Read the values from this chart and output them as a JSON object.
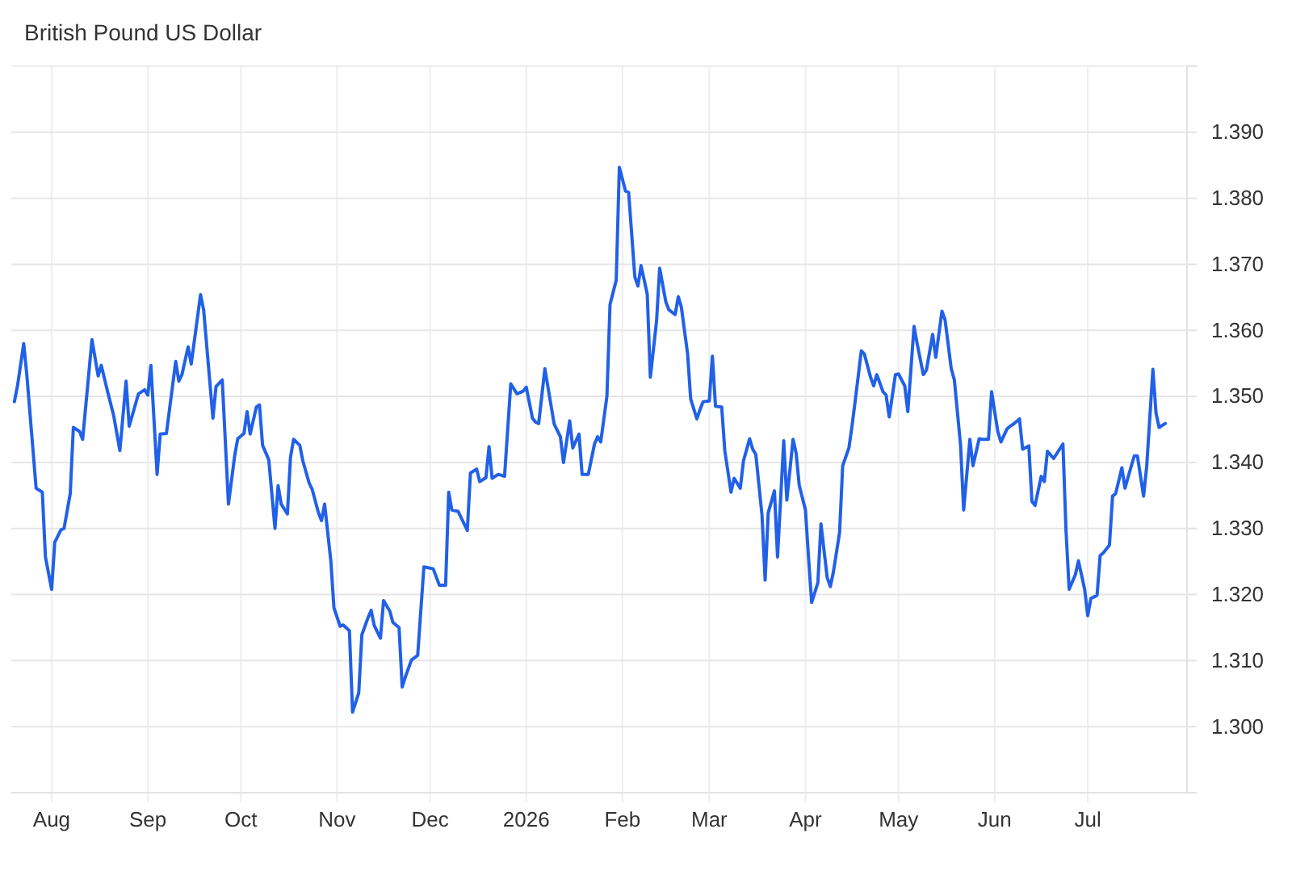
{
  "chart_data": {
    "type": "line",
    "title": "British Pound US Dollar",
    "color": "#2160e8",
    "line_style": "solid",
    "grid": true,
    "xlim": [
      "2025-07-19",
      "2026-08-02"
    ],
    "xticks": [
      {
        "value": "2025-08-01",
        "label": "Aug"
      },
      {
        "value": "2025-09-01",
        "label": "Sep"
      },
      {
        "value": "2025-10-01",
        "label": "Oct"
      },
      {
        "value": "2025-11-01",
        "label": "Nov"
      },
      {
        "value": "2025-12-01",
        "label": "Dec"
      },
      {
        "value": "2026-01-01",
        "label": "2026"
      },
      {
        "value": "2026-02-01",
        "label": "Feb"
      },
      {
        "value": "2026-03-01",
        "label": "Mar"
      },
      {
        "value": "2026-04-01",
        "label": "Apr"
      },
      {
        "value": "2026-05-01",
        "label": "May"
      },
      {
        "value": "2026-06-01",
        "label": "Jun"
      },
      {
        "value": "2026-07-01",
        "label": "Jul"
      }
    ],
    "ylim": [
      1.29,
      1.4
    ],
    "yticks": [
      {
        "value": 1.3,
        "label": "1.300"
      },
      {
        "value": 1.31,
        "label": "1.310"
      },
      {
        "value": 1.32,
        "label": "1.320"
      },
      {
        "value": 1.33,
        "label": "1.330"
      },
      {
        "value": 1.34,
        "label": "1.340"
      },
      {
        "value": 1.35,
        "label": "1.350"
      },
      {
        "value": 1.36,
        "label": "1.360"
      },
      {
        "value": 1.37,
        "label": "1.370"
      },
      {
        "value": 1.38,
        "label": "1.380"
      },
      {
        "value": 1.39,
        "label": "1.390"
      }
    ],
    "x": [
      "2025-07-20",
      "2025-07-21",
      "2025-07-23",
      "2025-07-24",
      "2025-07-27",
      "2025-07-29",
      "2025-07-30",
      "2025-08-01",
      "2025-08-02",
      "2025-08-04",
      "2025-08-05",
      "2025-08-07",
      "2025-08-08",
      "2025-08-10",
      "2025-08-11",
      "2025-08-14",
      "2025-08-16",
      "2025-08-17",
      "2025-08-19",
      "2025-08-21",
      "2025-08-23",
      "2025-08-25",
      "2025-08-26",
      "2025-08-29",
      "2025-08-31",
      "2025-09-01",
      "2025-09-02",
      "2025-09-04",
      "2025-09-05",
      "2025-09-07",
      "2025-09-10",
      "2025-09-11",
      "2025-09-12",
      "2025-09-14",
      "2025-09-15",
      "2025-09-18",
      "2025-09-19",
      "2025-09-22",
      "2025-09-23",
      "2025-09-25",
      "2025-09-27",
      "2025-09-29",
      "2025-09-30",
      "2025-10-02",
      "2025-10-03",
      "2025-10-04",
      "2025-10-06",
      "2025-10-07",
      "2025-10-08",
      "2025-10-10",
      "2025-10-12",
      "2025-10-13",
      "2025-10-14",
      "2025-10-16",
      "2025-10-17",
      "2025-10-18",
      "2025-10-20",
      "2025-10-21",
      "2025-10-23",
      "2025-10-24",
      "2025-10-26",
      "2025-10-27",
      "2025-10-28",
      "2025-10-30",
      "2025-10-31",
      "2025-11-02",
      "2025-11-03",
      "2025-11-05",
      "2025-11-06",
      "2025-11-08",
      "2025-11-09",
      "2025-11-11",
      "2025-11-12",
      "2025-11-13",
      "2025-11-15",
      "2025-11-16",
      "2025-11-18",
      "2025-11-19",
      "2025-11-21",
      "2025-11-22",
      "2025-11-23",
      "2025-11-25",
      "2025-11-27",
      "2025-11-29",
      "2025-12-02",
      "2025-12-04",
      "2025-12-06",
      "2025-12-07",
      "2025-12-08",
      "2025-12-10",
      "2025-12-13",
      "2025-12-14",
      "2025-12-16",
      "2025-12-17",
      "2025-12-19",
      "2025-12-20",
      "2025-12-21",
      "2025-12-23",
      "2025-12-25",
      "2025-12-27",
      "2025-12-29",
      "2025-12-31",
      "2026-01-01",
      "2026-01-03",
      "2026-01-04",
      "2026-01-05",
      "2026-01-07",
      "2026-01-10",
      "2026-01-12",
      "2026-01-13",
      "2026-01-15",
      "2026-01-16",
      "2026-01-18",
      "2026-01-19",
      "2026-01-21",
      "2026-01-23",
      "2026-01-24",
      "2026-01-25",
      "2026-01-27",
      "2026-01-28",
      "2026-01-30",
      "2026-01-31",
      "2026-02-02",
      "2026-02-03",
      "2026-02-05",
      "2026-02-06",
      "2026-02-07",
      "2026-02-09",
      "2026-02-10",
      "2026-02-12",
      "2026-02-13",
      "2026-02-15",
      "2026-02-16",
      "2026-02-18",
      "2026-02-19",
      "2026-02-20",
      "2026-02-22",
      "2026-02-23",
      "2026-02-25",
      "2026-02-26",
      "2026-02-27",
      "2026-03-01",
      "2026-03-02",
      "2026-03-03",
      "2026-03-05",
      "2026-03-06",
      "2026-03-08",
      "2026-03-09",
      "2026-03-11",
      "2026-03-12",
      "2026-03-14",
      "2026-03-15",
      "2026-03-16",
      "2026-03-18",
      "2026-03-19",
      "2026-03-20",
      "2026-03-22",
      "2026-03-23",
      "2026-03-25",
      "2026-03-26",
      "2026-03-28",
      "2026-03-29",
      "2026-03-30",
      "2026-04-01",
      "2026-04-02",
      "2026-04-03",
      "2026-04-05",
      "2026-04-06",
      "2026-04-08",
      "2026-04-09",
      "2026-04-10",
      "2026-04-12",
      "2026-04-13",
      "2026-04-15",
      "2026-04-16",
      "2026-04-17",
      "2026-04-19",
      "2026-04-20",
      "2026-04-22",
      "2026-04-23",
      "2026-04-24",
      "2026-04-26",
      "2026-04-27",
      "2026-04-28",
      "2026-04-30",
      "2026-05-01",
      "2026-05-03",
      "2026-05-04",
      "2026-05-06",
      "2026-05-07",
      "2026-05-09",
      "2026-05-10",
      "2026-05-12",
      "2026-05-13",
      "2026-05-15",
      "2026-05-16",
      "2026-05-18",
      "2026-05-19",
      "2026-05-21",
      "2026-05-22",
      "2026-05-24",
      "2026-05-25",
      "2026-05-27",
      "2026-05-28",
      "2026-05-30",
      "2026-05-31",
      "2026-06-02",
      "2026-06-03",
      "2026-06-05",
      "2026-06-06",
      "2026-06-07",
      "2026-06-09",
      "2026-06-10",
      "2026-06-12",
      "2026-06-13",
      "2026-06-14",
      "2026-06-16",
      "2026-06-17",
      "2026-06-18",
      "2026-06-20",
      "2026-06-23",
      "2026-06-24",
      "2026-06-25",
      "2026-06-27",
      "2026-06-28",
      "2026-06-30",
      "2026-07-01",
      "2026-07-02",
      "2026-07-04",
      "2026-07-05",
      "2026-07-06",
      "2026-07-08",
      "2026-07-09",
      "2026-07-10",
      "2026-07-12",
      "2026-07-13",
      "2026-07-15",
      "2026-07-16",
      "2026-07-17",
      "2026-07-19",
      "2026-07-20",
      "2026-07-22",
      "2026-07-23",
      "2026-07-24",
      "2026-07-26"
    ],
    "values": [
      1.3492,
      1.3516,
      1.358,
      1.3533,
      1.3361,
      1.3355,
      1.3257,
      1.3208,
      1.3279,
      1.3298,
      1.33,
      1.3353,
      1.3453,
      1.3447,
      1.3435,
      1.3586,
      1.3531,
      1.3547,
      1.3508,
      1.3471,
      1.3418,
      1.3523,
      1.3455,
      1.3504,
      1.351,
      1.3502,
      1.3547,
      1.3382,
      1.3443,
      1.3444,
      1.3553,
      1.3523,
      1.3533,
      1.3575,
      1.3549,
      1.3654,
      1.3631,
      1.3467,
      1.3515,
      1.3525,
      1.3337,
      1.341,
      1.3436,
      1.3444,
      1.3477,
      1.3443,
      1.3484,
      1.3487,
      1.3426,
      1.3404,
      1.33,
      1.3365,
      1.3337,
      1.3322,
      1.3408,
      1.3435,
      1.3426,
      1.3402,
      1.3369,
      1.3359,
      1.3324,
      1.3312,
      1.3337,
      1.3251,
      1.318,
      1.3152,
      1.3154,
      1.3145,
      1.3022,
      1.3051,
      1.3139,
      1.3165,
      1.3176,
      1.3153,
      1.3134,
      1.3191,
      1.3175,
      1.3158,
      1.315,
      1.306,
      1.3075,
      1.3101,
      1.3108,
      1.3242,
      1.3239,
      1.3214,
      1.3214,
      1.3355,
      1.3328,
      1.3326,
      1.3297,
      1.3384,
      1.339,
      1.3371,
      1.3377,
      1.3424,
      1.3376,
      1.3382,
      1.3379,
      1.3519,
      1.3504,
      1.3508,
      1.3514,
      1.3467,
      1.3461,
      1.3459,
      1.3542,
      1.3458,
      1.3439,
      1.34,
      1.3463,
      1.3422,
      1.3443,
      1.3382,
      1.3382,
      1.3428,
      1.3439,
      1.3431,
      1.35,
      1.3639,
      1.3676,
      1.3847,
      1.3811,
      1.3809,
      1.3681,
      1.3667,
      1.3698,
      1.3655,
      1.3529,
      1.3614,
      1.3694,
      1.3643,
      1.3631,
      1.3624,
      1.3651,
      1.3635,
      1.3565,
      1.3496,
      1.3466,
      1.348,
      1.3492,
      1.3493,
      1.3561,
      1.3485,
      1.3484,
      1.3418,
      1.3355,
      1.3376,
      1.3361,
      1.3402,
      1.3436,
      1.342,
      1.3412,
      1.332,
      1.3222,
      1.3324,
      1.3357,
      1.3257,
      1.3433,
      1.3343,
      1.3435,
      1.3414,
      1.3365,
      1.3328,
      1.3255,
      1.3188,
      1.3218,
      1.3307,
      1.3226,
      1.3212,
      1.3234,
      1.3294,
      1.3395,
      1.3422,
      1.3455,
      1.3492,
      1.3569,
      1.3564,
      1.3529,
      1.3516,
      1.3533,
      1.3507,
      1.3502,
      1.3469,
      1.3533,
      1.3534,
      1.3516,
      1.3477,
      1.3606,
      1.358,
      1.3533,
      1.354,
      1.3594,
      1.3559,
      1.3629,
      1.3616,
      1.3542,
      1.3525,
      1.3426,
      1.3328,
      1.3435,
      1.3395,
      1.3436,
      1.3435,
      1.3435,
      1.3507,
      1.3447,
      1.3431,
      1.3451,
      1.3455,
      1.3458,
      1.3466,
      1.342,
      1.3425,
      1.3341,
      1.3335,
      1.3379,
      1.3371,
      1.3417,
      1.3406,
      1.3428,
      1.3296,
      1.3208,
      1.323,
      1.3251,
      1.3208,
      1.3168,
      1.3194,
      1.3199,
      1.3259,
      1.3263,
      1.3275,
      1.3349,
      1.3353,
      1.3392,
      1.3361,
      1.3394,
      1.341,
      1.341,
      1.3349,
      1.3394,
      1.3541,
      1.3475,
      1.3453,
      1.3459
    ]
  }
}
